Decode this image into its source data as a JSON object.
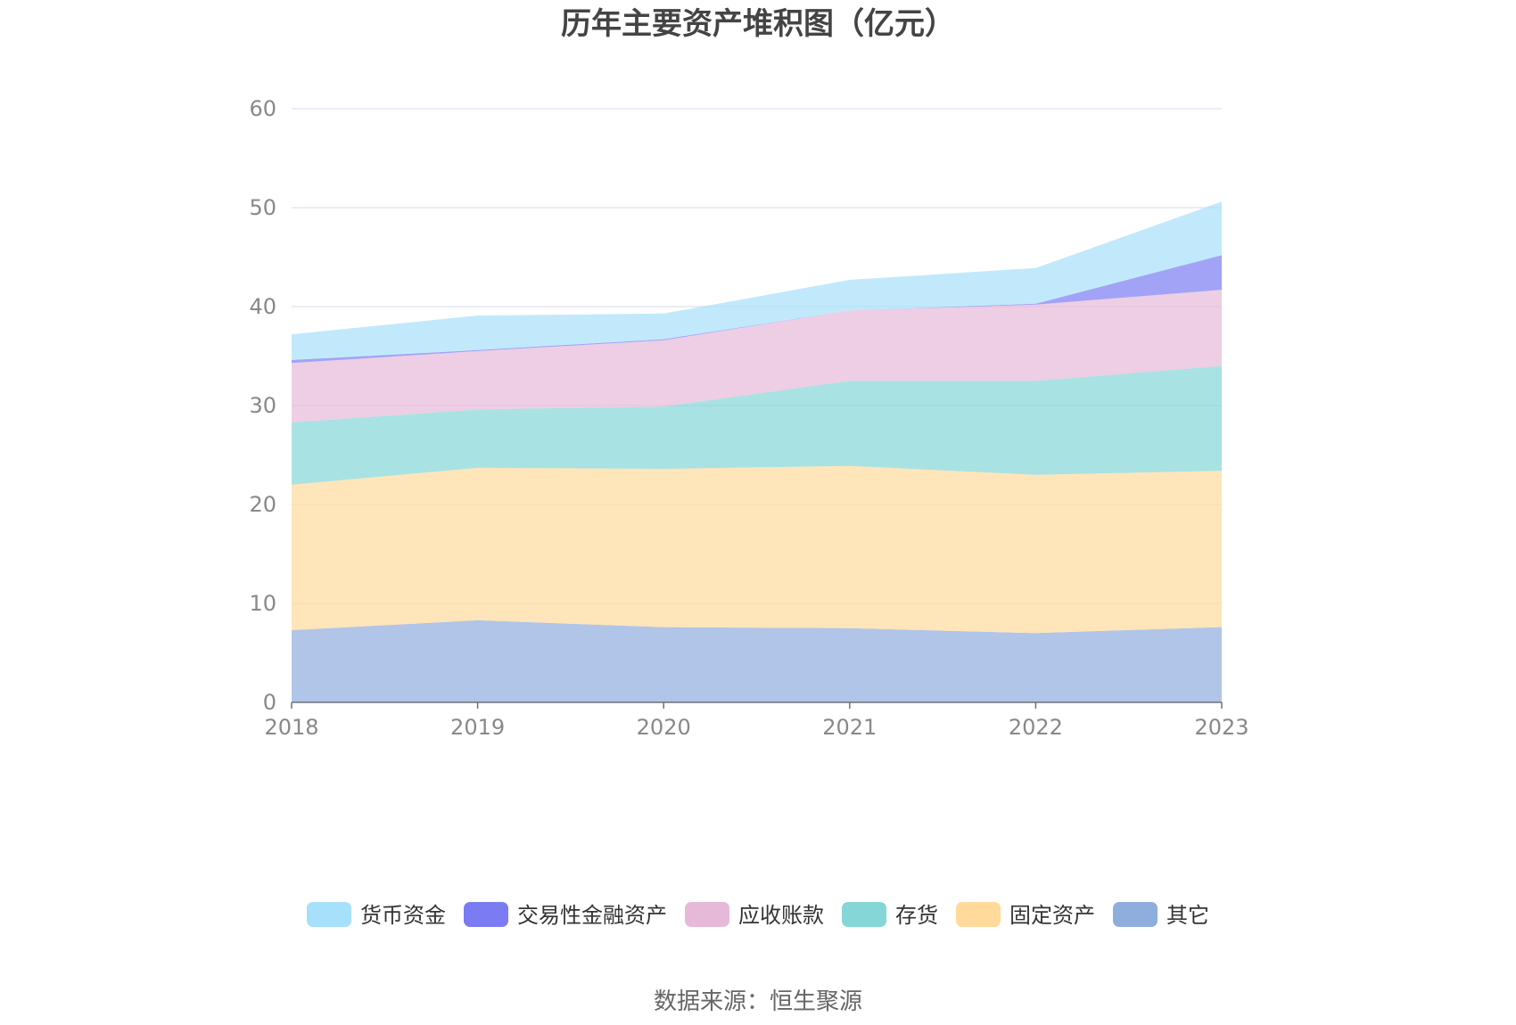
{
  "chart_data": {
    "type": "area",
    "stacked": true,
    "title": "历年主要资产堆积图（亿元）",
    "categories": [
      "2018",
      "2019",
      "2020",
      "2021",
      "2022",
      "2023"
    ],
    "ylim": [
      0,
      60
    ],
    "yticks": [
      0,
      10,
      20,
      30,
      40,
      50,
      60
    ],
    "grid": true,
    "legend_position": "bottom",
    "series": [
      {
        "name": "其它",
        "color": "#8FADDD",
        "values": [
          7.3,
          8.3,
          7.6,
          7.5,
          7.0,
          7.6
        ]
      },
      {
        "name": "固定资产",
        "color": "#FFDA9B",
        "values": [
          14.7,
          15.4,
          16.0,
          16.4,
          16.0,
          15.8
        ]
      },
      {
        "name": "存货",
        "color": "#85D6D6",
        "values": [
          6.3,
          5.9,
          6.3,
          8.6,
          9.5,
          10.6
        ]
      },
      {
        "name": "应收账款",
        "color": "#E7B9D9",
        "values": [
          6.0,
          5.9,
          6.7,
          7.1,
          7.7,
          7.7
        ]
      },
      {
        "name": "交易性金融资产",
        "color": "#7B7CF2",
        "values": [
          0.3,
          0.1,
          0.1,
          0.0,
          0.1,
          3.5
        ]
      },
      {
        "name": "货币资金",
        "color": "#A6E0FA",
        "values": [
          2.6,
          3.5,
          2.6,
          3.1,
          3.6,
          5.4
        ]
      }
    ],
    "legend_order": [
      "货币资金",
      "交易性金融资产",
      "应收账款",
      "存货",
      "固定资产",
      "其它"
    ]
  },
  "source_text": "数据来源：恒生聚源"
}
